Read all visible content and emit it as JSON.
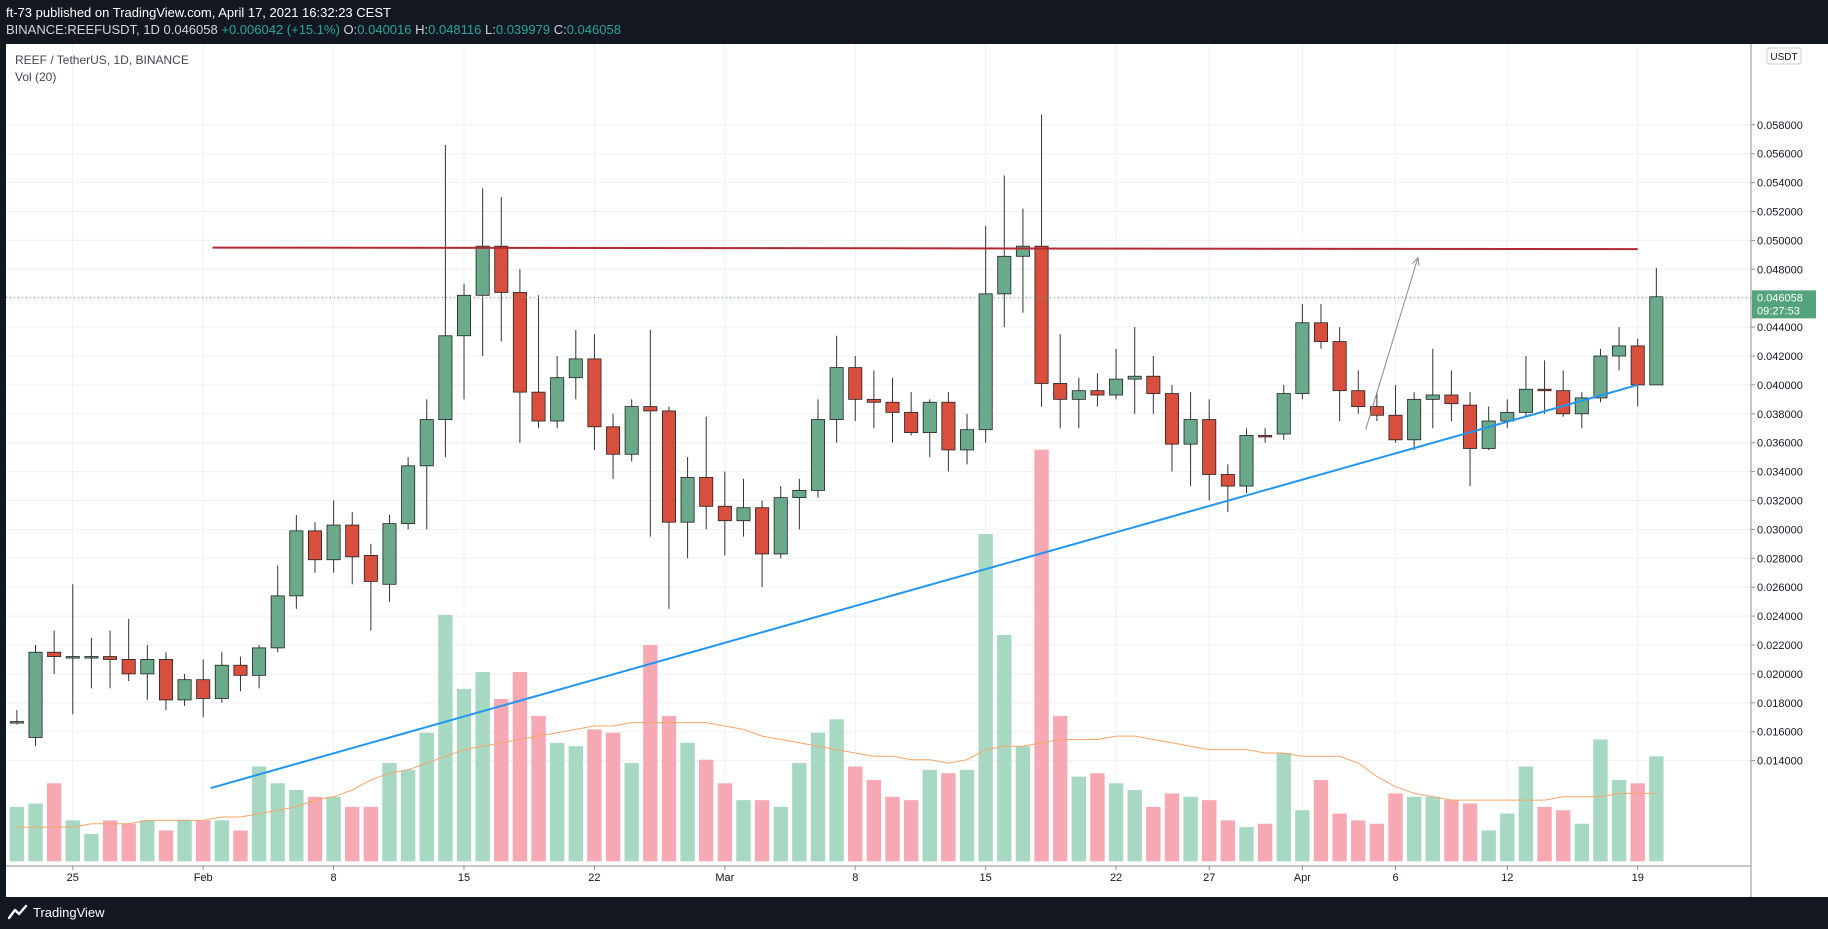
{
  "header": {
    "publisher": "ft-73 published on TradingView.com, April 17, 2021 16:32:23 CEST",
    "symbol_line": "BINANCE:REEFUSDT, 1D",
    "last": "0.046058",
    "change": "+0.006042 (+15.1%)",
    "o_label": "O:",
    "o_value": "0.040016",
    "h_label": "H:",
    "h_value": "0.048116",
    "l_label": "L:",
    "l_value": "0.039979",
    "c_label": "C:",
    "c_value": "0.046058"
  },
  "legend": {
    "title": "REEF / TetherUS, 1D, BINANCE",
    "volume": "Vol (20)"
  },
  "price_tag": {
    "value": "0.046058",
    "countdown": "09:27:53"
  },
  "currency_badge": "USDT",
  "footer": {
    "brand": "TradingView"
  },
  "colors": {
    "bull": "#6aa989",
    "bear": "#d94f3d",
    "bull_vol": "#a7d8c2",
    "bear_vol": "#f6a9b2",
    "resistance": "#b22833",
    "support": "#2196f3",
    "ma": "#f6a66b",
    "price_tag": "#53a47c"
  },
  "chart_data": {
    "type": "candlestick",
    "y_ticks": [
      "0.014000",
      "0.016000",
      "0.018000",
      "0.020000",
      "0.022000",
      "0.024000",
      "0.026000",
      "0.028000",
      "0.030000",
      "0.032000",
      "0.034000",
      "0.036000",
      "0.038000",
      "0.040000",
      "0.042000",
      "0.044000",
      "0.046000",
      "0.048000",
      "0.050000",
      "0.052000",
      "0.054000",
      "0.056000",
      "0.058000"
    ],
    "x_ticks": [
      {
        "label": "25",
        "i": 3
      },
      {
        "label": "Feb",
        "i": 10
      },
      {
        "label": "8",
        "i": 17
      },
      {
        "label": "15",
        "i": 24
      },
      {
        "label": "22",
        "i": 31
      },
      {
        "label": "Mar",
        "i": 38
      },
      {
        "label": "8",
        "i": 45
      },
      {
        "label": "15",
        "i": 52
      },
      {
        "label": "22",
        "i": 59
      },
      {
        "label": "27",
        "i": 64
      },
      {
        "label": "Apr",
        "i": 69
      },
      {
        "label": "6",
        "i": 74
      },
      {
        "label": "12",
        "i": 80
      },
      {
        "label": "19",
        "i": 87
      }
    ],
    "candles": [
      {
        "o": 0.0167,
        "h": 0.0175,
        "l": 0.0165,
        "c": 0.0167,
        "v": 14.0
      },
      {
        "o": 0.0156,
        "h": 0.022,
        "l": 0.015,
        "c": 0.0215,
        "v": 14.1
      },
      {
        "o": 0.0215,
        "h": 0.023,
        "l": 0.02,
        "c": 0.0212,
        "v": 14.7
      },
      {
        "o": 0.0212,
        "h": 0.0262,
        "l": 0.0172,
        "c": 0.0212,
        "v": 13.6
      },
      {
        "o": 0.0212,
        "h": 0.0225,
        "l": 0.019,
        "c": 0.0212,
        "v": 13.2
      },
      {
        "o": 0.0212,
        "h": 0.023,
        "l": 0.019,
        "c": 0.021,
        "v": 13.6
      },
      {
        "o": 0.021,
        "h": 0.0238,
        "l": 0.0195,
        "c": 0.02,
        "v": 13.5
      },
      {
        "o": 0.02,
        "h": 0.022,
        "l": 0.0182,
        "c": 0.021,
        "v": 13.6
      },
      {
        "o": 0.021,
        "h": 0.0215,
        "l": 0.0175,
        "c": 0.0182,
        "v": 13.3
      },
      {
        "o": 0.0182,
        "h": 0.02,
        "l": 0.0178,
        "c": 0.0196,
        "v": 13.6
      },
      {
        "o": 0.0196,
        "h": 0.021,
        "l": 0.017,
        "c": 0.0183,
        "v": 13.6
      },
      {
        "o": 0.0183,
        "h": 0.0215,
        "l": 0.018,
        "c": 0.0206,
        "v": 13.6
      },
      {
        "o": 0.0206,
        "h": 0.0212,
        "l": 0.0188,
        "c": 0.0199,
        "v": 13.3
      },
      {
        "o": 0.0199,
        "h": 0.022,
        "l": 0.019,
        "c": 0.0218,
        "v": 15.2
      },
      {
        "o": 0.0218,
        "h": 0.0275,
        "l": 0.0215,
        "c": 0.0254,
        "v": 14.7
      },
      {
        "o": 0.0254,
        "h": 0.031,
        "l": 0.0245,
        "c": 0.0299,
        "v": 14.5
      },
      {
        "o": 0.0299,
        "h": 0.0305,
        "l": 0.027,
        "c": 0.0279,
        "v": 14.3
      },
      {
        "o": 0.0279,
        "h": 0.032,
        "l": 0.027,
        "c": 0.0303,
        "v": 14.3
      },
      {
        "o": 0.0303,
        "h": 0.0312,
        "l": 0.0262,
        "c": 0.0281,
        "v": 14.0
      },
      {
        "o": 0.0282,
        "h": 0.029,
        "l": 0.023,
        "c": 0.0264,
        "v": 14.0
      },
      {
        "o": 0.0262,
        "h": 0.031,
        "l": 0.025,
        "c": 0.0304,
        "v": 15.3
      },
      {
        "o": 0.0304,
        "h": 0.035,
        "l": 0.03,
        "c": 0.0344,
        "v": 15.1
      },
      {
        "o": 0.0344,
        "h": 0.039,
        "l": 0.03,
        "c": 0.0376,
        "v": 16.2
      },
      {
        "o": 0.0376,
        "h": 0.0566,
        "l": 0.035,
        "c": 0.0434,
        "v": 19.7
      },
      {
        "o": 0.0434,
        "h": 0.047,
        "l": 0.039,
        "c": 0.0462,
        "v": 17.5
      },
      {
        "o": 0.0462,
        "h": 0.0536,
        "l": 0.042,
        "c": 0.0496,
        "v": 18.0
      },
      {
        "o": 0.0496,
        "h": 0.053,
        "l": 0.043,
        "c": 0.0464,
        "v": 17.2
      },
      {
        "o": 0.0464,
        "h": 0.048,
        "l": 0.036,
        "c": 0.0395,
        "v": 18.0
      },
      {
        "o": 0.0395,
        "h": 0.0462,
        "l": 0.037,
        "c": 0.0375,
        "v": 16.7
      },
      {
        "o": 0.0375,
        "h": 0.042,
        "l": 0.037,
        "c": 0.0405,
        "v": 15.9
      },
      {
        "o": 0.0405,
        "h": 0.0438,
        "l": 0.039,
        "c": 0.0418,
        "v": 15.8
      },
      {
        "o": 0.0418,
        "h": 0.0435,
        "l": 0.0355,
        "c": 0.0371,
        "v": 16.3
      },
      {
        "o": 0.0371,
        "h": 0.038,
        "l": 0.0335,
        "c": 0.0352,
        "v": 16.2
      },
      {
        "o": 0.0352,
        "h": 0.039,
        "l": 0.0347,
        "c": 0.0385,
        "v": 15.3
      },
      {
        "o": 0.0385,
        "h": 0.0438,
        "l": 0.0295,
        "c": 0.0382,
        "v": 18.8
      },
      {
        "o": 0.0382,
        "h": 0.0385,
        "l": 0.0245,
        "c": 0.0305,
        "v": 16.7
      },
      {
        "o": 0.0305,
        "h": 0.035,
        "l": 0.028,
        "c": 0.0336,
        "v": 15.9
      },
      {
        "o": 0.0336,
        "h": 0.0378,
        "l": 0.03,
        "c": 0.0316,
        "v": 15.4
      },
      {
        "o": 0.0316,
        "h": 0.034,
        "l": 0.0282,
        "c": 0.0306,
        "v": 14.7
      },
      {
        "o": 0.0306,
        "h": 0.0335,
        "l": 0.0295,
        "c": 0.0315,
        "v": 14.2
      },
      {
        "o": 0.0315,
        "h": 0.032,
        "l": 0.026,
        "c": 0.0283,
        "v": 14.2
      },
      {
        "o": 0.0283,
        "h": 0.033,
        "l": 0.028,
        "c": 0.0322,
        "v": 14.0
      },
      {
        "o": 0.0322,
        "h": 0.0335,
        "l": 0.03,
        "c": 0.0327,
        "v": 15.3
      },
      {
        "o": 0.0327,
        "h": 0.039,
        "l": 0.0322,
        "c": 0.0376,
        "v": 16.2
      },
      {
        "o": 0.0376,
        "h": 0.0434,
        "l": 0.036,
        "c": 0.0412,
        "v": 16.6
      },
      {
        "o": 0.0412,
        "h": 0.042,
        "l": 0.0375,
        "c": 0.039,
        "v": 15.2
      },
      {
        "o": 0.039,
        "h": 0.041,
        "l": 0.037,
        "c": 0.0388,
        "v": 14.8
      },
      {
        "o": 0.0388,
        "h": 0.0405,
        "l": 0.036,
        "c": 0.0381,
        "v": 14.3
      },
      {
        "o": 0.0381,
        "h": 0.0395,
        "l": 0.0365,
        "c": 0.0367,
        "v": 14.2
      },
      {
        "o": 0.0367,
        "h": 0.039,
        "l": 0.035,
        "c": 0.0388,
        "v": 15.1
      },
      {
        "o": 0.0388,
        "h": 0.0395,
        "l": 0.034,
        "c": 0.0355,
        "v": 15.0
      },
      {
        "o": 0.0355,
        "h": 0.038,
        "l": 0.0345,
        "c": 0.0369,
        "v": 15.1
      },
      {
        "o": 0.0369,
        "h": 0.051,
        "l": 0.036,
        "c": 0.0463,
        "v": 22.1
      },
      {
        "o": 0.0463,
        "h": 0.0545,
        "l": 0.044,
        "c": 0.0489,
        "v": 19.1
      },
      {
        "o": 0.0489,
        "h": 0.0522,
        "l": 0.045,
        "c": 0.0496,
        "v": 15.8
      },
      {
        "o": 0.0496,
        "h": 0.0587,
        "l": 0.0385,
        "c": 0.0401,
        "v": 24.6
      },
      {
        "o": 0.0401,
        "h": 0.0435,
        "l": 0.037,
        "c": 0.039,
        "v": 16.7
      },
      {
        "o": 0.039,
        "h": 0.0405,
        "l": 0.037,
        "c": 0.0396,
        "v": 14.9
      },
      {
        "o": 0.0396,
        "h": 0.0408,
        "l": 0.0385,
        "c": 0.0393,
        "v": 15.0
      },
      {
        "o": 0.0393,
        "h": 0.0425,
        "l": 0.039,
        "c": 0.0404,
        "v": 14.7
      },
      {
        "o": 0.0404,
        "h": 0.044,
        "l": 0.038,
        "c": 0.0406,
        "v": 14.5
      },
      {
        "o": 0.0406,
        "h": 0.042,
        "l": 0.038,
        "c": 0.0394,
        "v": 14.0
      },
      {
        "o": 0.0394,
        "h": 0.04,
        "l": 0.034,
        "c": 0.0359,
        "v": 14.4
      },
      {
        "o": 0.0359,
        "h": 0.0395,
        "l": 0.033,
        "c": 0.0376,
        "v": 14.3
      },
      {
        "o": 0.0376,
        "h": 0.039,
        "l": 0.032,
        "c": 0.0338,
        "v": 14.2
      },
      {
        "o": 0.0338,
        "h": 0.0345,
        "l": 0.0312,
        "c": 0.033,
        "v": 13.6
      },
      {
        "o": 0.033,
        "h": 0.037,
        "l": 0.0325,
        "c": 0.0365,
        "v": 13.4
      },
      {
        "o": 0.0365,
        "h": 0.037,
        "l": 0.036,
        "c": 0.0364,
        "v": 13.5
      },
      {
        "o": 0.0366,
        "h": 0.04,
        "l": 0.0362,
        "c": 0.0394,
        "v": 15.6
      },
      {
        "o": 0.0394,
        "h": 0.0456,
        "l": 0.039,
        "c": 0.0443,
        "v": 13.9
      },
      {
        "o": 0.0443,
        "h": 0.0456,
        "l": 0.0425,
        "c": 0.043,
        "v": 14.8
      },
      {
        "o": 0.043,
        "h": 0.044,
        "l": 0.0375,
        "c": 0.0396,
        "v": 13.8
      },
      {
        "o": 0.0396,
        "h": 0.041,
        "l": 0.038,
        "c": 0.0385,
        "v": 13.6
      },
      {
        "o": 0.0385,
        "h": 0.0395,
        "l": 0.0375,
        "c": 0.0379,
        "v": 13.5
      },
      {
        "o": 0.0379,
        "h": 0.04,
        "l": 0.036,
        "c": 0.0362,
        "v": 14.4
      },
      {
        "o": 0.0362,
        "h": 0.0395,
        "l": 0.0355,
        "c": 0.039,
        "v": 14.3
      },
      {
        "o": 0.039,
        "h": 0.0425,
        "l": 0.037,
        "c": 0.0393,
        "v": 14.3
      },
      {
        "o": 0.0393,
        "h": 0.041,
        "l": 0.0375,
        "c": 0.0387,
        "v": 14.2
      },
      {
        "o": 0.0386,
        "h": 0.0395,
        "l": 0.033,
        "c": 0.0356,
        "v": 14.1
      },
      {
        "o": 0.0356,
        "h": 0.0385,
        "l": 0.0355,
        "c": 0.0375,
        "v": 13.3
      },
      {
        "o": 0.0375,
        "h": 0.039,
        "l": 0.037,
        "c": 0.0381,
        "v": 13.8
      },
      {
        "o": 0.0381,
        "h": 0.042,
        "l": 0.0378,
        "c": 0.0397,
        "v": 15.2
      },
      {
        "o": 0.0397,
        "h": 0.0417,
        "l": 0.038,
        "c": 0.0396,
        "v": 14.0
      },
      {
        "o": 0.0396,
        "h": 0.041,
        "l": 0.0378,
        "c": 0.038,
        "v": 13.9
      },
      {
        "o": 0.038,
        "h": 0.0395,
        "l": 0.037,
        "c": 0.0391,
        "v": 13.5
      },
      {
        "o": 0.0391,
        "h": 0.0425,
        "l": 0.0388,
        "c": 0.042,
        "v": 16.0
      },
      {
        "o": 0.042,
        "h": 0.044,
        "l": 0.041,
        "c": 0.0427,
        "v": 14.8
      },
      {
        "o": 0.0427,
        "h": 0.0432,
        "l": 0.0385,
        "c": 0.04,
        "v": 14.7
      },
      {
        "o": 0.04,
        "h": 0.0481,
        "l": 0.04,
        "c": 0.0461,
        "v": 15.5
      }
    ],
    "ma": [
      13.4,
      13.4,
      13.4,
      13.4,
      13.5,
      13.5,
      13.5,
      13.6,
      13.6,
      13.6,
      13.6,
      13.7,
      13.7,
      13.8,
      13.9,
      14.0,
      14.2,
      14.3,
      14.5,
      14.8,
      15.0,
      15.1,
      15.3,
      15.5,
      15.7,
      15.8,
      15.9,
      16.0,
      16.1,
      16.2,
      16.3,
      16.4,
      16.4,
      16.5,
      16.5,
      16.5,
      16.5,
      16.5,
      16.4,
      16.3,
      16.1,
      16.0,
      15.9,
      15.8,
      15.7,
      15.6,
      15.5,
      15.5,
      15.4,
      15.4,
      15.3,
      15.4,
      15.7,
      15.8,
      15.8,
      15.9,
      16.0,
      16.0,
      16.0,
      16.1,
      16.1,
      16.0,
      15.9,
      15.8,
      15.7,
      15.7,
      15.7,
      15.6,
      15.6,
      15.5,
      15.5,
      15.5,
      15.3,
      14.9,
      14.6,
      14.4,
      14.3,
      14.2,
      14.2,
      14.2,
      14.2,
      14.2,
      14.2,
      14.3,
      14.3,
      14.3,
      14.4,
      14.4,
      14.4
    ],
    "resistance_line": {
      "from": [
        10.5,
        0.0495
      ],
      "to": [
        87,
        0.0494
      ]
    },
    "support_line": {
      "from": [
        10.4,
        0.0121
      ],
      "to": [
        87,
        0.04
      ]
    },
    "arrow": {
      "from": [
        72.4,
        0.0369
      ],
      "to": [
        75.2,
        0.0488
      ]
    }
  }
}
